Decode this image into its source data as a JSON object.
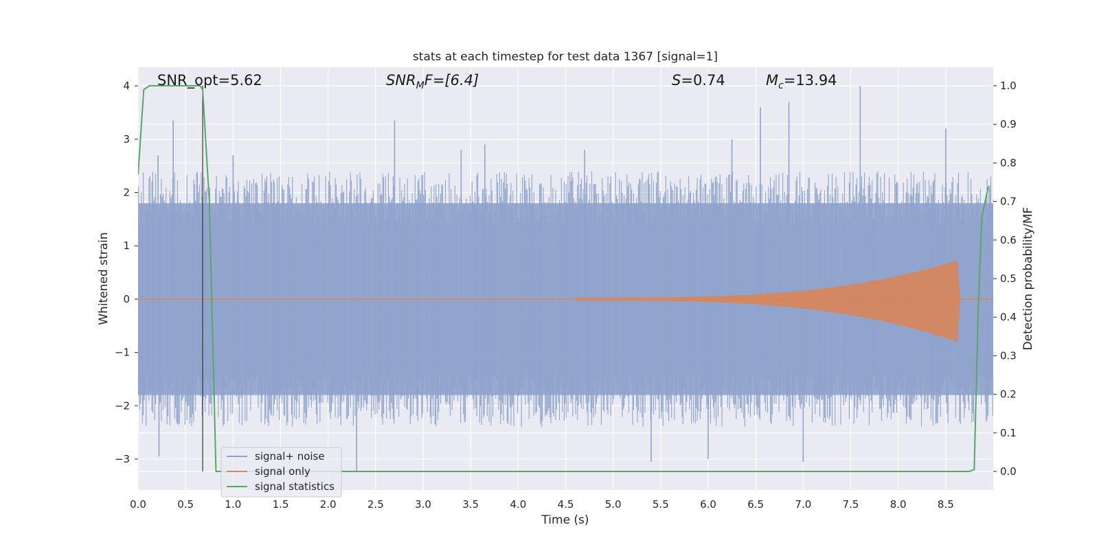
{
  "chart_data": {
    "type": "line",
    "title": "stats at each timestep for test data 1367 [signal=1]",
    "xlabel": "Time (s)",
    "ylabel": "Whitened strain",
    "y2label": "Detection probability/MF",
    "xlim": [
      0.0,
      9.0
    ],
    "ylim": [
      -3.58,
      4.35
    ],
    "y2lim": [
      -0.048,
      1.048
    ],
    "xticks": [
      "0.0",
      "0.5",
      "1.0",
      "1.5",
      "2.0",
      "2.5",
      "3.0",
      "3.5",
      "4.0",
      "4.5",
      "5.0",
      "5.5",
      "6.0",
      "6.5",
      "7.0",
      "7.5",
      "8.0",
      "8.5"
    ],
    "yticks": [
      "4",
      "3",
      "2",
      "1",
      "0",
      "−1",
      "−2",
      "−3"
    ],
    "y2ticks": [
      "1.0",
      "0.9",
      "0.8",
      "0.7",
      "0.6",
      "0.5",
      "0.4",
      "0.3",
      "0.2",
      "0.1",
      "0.0"
    ],
    "grid": true,
    "legend_position": "lower-left",
    "annotations": {
      "snr_opt": "SNR_opt=5.62",
      "snr_mf_base": "SNR",
      "snr_mf_sub": "M",
      "snr_mf_rest": "F=[6.4]",
      "s_base": "S",
      "s_rest": "=0.74",
      "mc_base": "M",
      "mc_sub": "c",
      "mc_rest": "=13.94"
    },
    "vline_x": 0.68,
    "series": [
      {
        "name": "signal+ noise",
        "color": "#8fa3cc",
        "envelope": {
          "typical_upper": 1.8,
          "typical_lower": -1.8,
          "spikes": [
            {
              "x": 0.37,
              "y": 3.35
            },
            {
              "x": 0.21,
              "y": 2.7
            },
            {
              "x": 1.0,
              "y": 2.7
            },
            {
              "x": 2.7,
              "y": 3.35
            },
            {
              "x": 3.4,
              "y": 2.8
            },
            {
              "x": 3.65,
              "y": 2.9
            },
            {
              "x": 4.7,
              "y": 2.8
            },
            {
              "x": 6.25,
              "y": 3.0
            },
            {
              "x": 6.85,
              "y": 3.7
            },
            {
              "x": 6.55,
              "y": 3.6
            },
            {
              "x": 7.6,
              "y": 4.0
            },
            {
              "x": 8.5,
              "y": 3.2
            },
            {
              "x": 0.22,
              "y": -2.95
            },
            {
              "x": 2.3,
              "y": -3.25
            },
            {
              "x": 5.4,
              "y": -3.05
            },
            {
              "x": 6.0,
              "y": -3.0
            },
            {
              "x": 7.0,
              "y": -3.05
            }
          ]
        }
      },
      {
        "name": "signal only",
        "color": "#dd8452",
        "chirp": {
          "start": 4.6,
          "peak_x": 8.62,
          "peak_amp": 0.7,
          "end": 8.65
        }
      },
      {
        "name": "signal statistics",
        "color": "#55a868",
        "axis": "right",
        "points": [
          [
            0.0,
            0.77
          ],
          [
            0.06,
            0.99
          ],
          [
            0.12,
            1.0
          ],
          [
            0.65,
            1.0
          ],
          [
            0.68,
            0.99
          ],
          [
            0.75,
            0.7
          ],
          [
            0.8,
            0.2
          ],
          [
            0.82,
            0.0
          ],
          [
            8.75,
            0.0
          ],
          [
            8.8,
            0.005
          ],
          [
            8.84,
            0.4
          ],
          [
            8.88,
            0.66
          ],
          [
            8.95,
            0.74
          ]
        ]
      }
    ]
  }
}
